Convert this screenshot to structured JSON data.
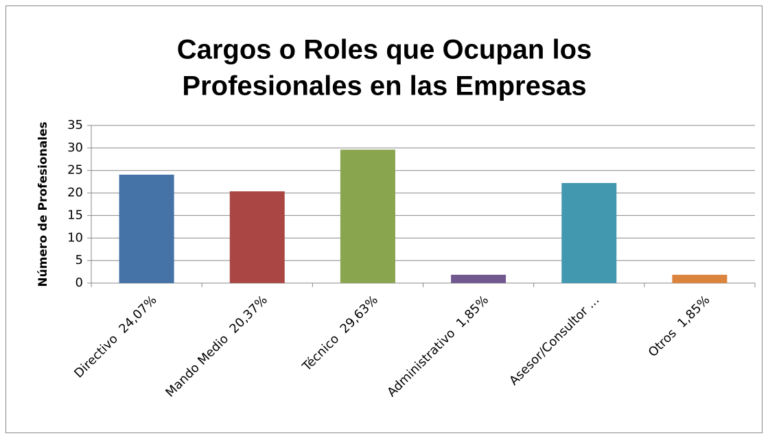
{
  "chart_data": {
    "type": "bar",
    "title": [
      "Cargos o Roles que Ocupan los",
      "Profesionales en las Empresas"
    ],
    "y_label": "Número de Profesionales",
    "categories": [
      "Directivo  24,07%",
      "Mando Medio  20,37%",
      "Técnico  29,63%",
      "Administrativo  1,85%",
      "Asesor/Consultor ...",
      "Otros  1,85%"
    ],
    "values": [
      24.07,
      20.37,
      29.63,
      1.85,
      22.22,
      1.85
    ],
    "colors": [
      "#4572a7",
      "#aa4643",
      "#89a54e",
      "#71588f",
      "#4198af",
      "#db843d"
    ],
    "ylim": [
      0,
      35
    ],
    "yticks": [
      0,
      5,
      10,
      15,
      20,
      25,
      30,
      35
    ],
    "grid": true
  }
}
